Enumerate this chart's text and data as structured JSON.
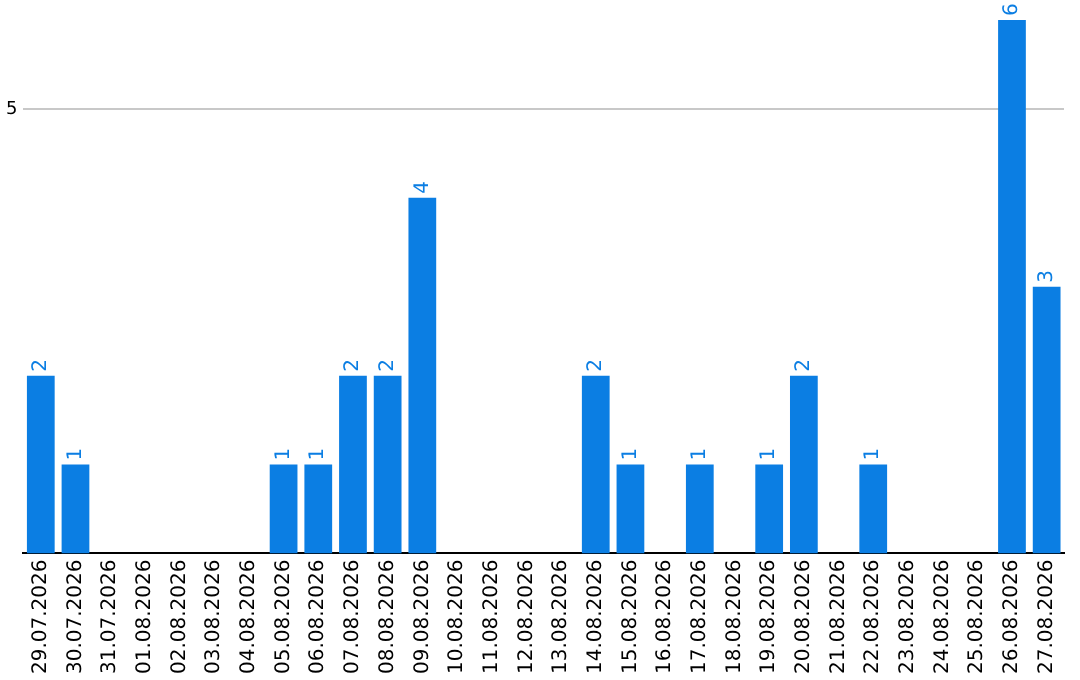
{
  "chart_data": {
    "type": "bar",
    "categories": [
      "29.07.2026",
      "30.07.2026",
      "31.07.2026",
      "01.08.2026",
      "02.08.2026",
      "03.08.2026",
      "04.08.2026",
      "05.08.2026",
      "06.08.2026",
      "07.08.2026",
      "08.08.2026",
      "09.08.2026",
      "10.08.2026",
      "11.08.2026",
      "12.08.2026",
      "13.08.2026",
      "14.08.2026",
      "15.08.2026",
      "16.08.2026",
      "17.08.2026",
      "18.08.2026",
      "19.08.2026",
      "20.08.2026",
      "21.08.2026",
      "22.08.2026",
      "23.08.2026",
      "24.08.2026",
      "25.08.2026",
      "26.08.2026",
      "27.08.2026"
    ],
    "values": [
      2,
      1,
      0,
      0,
      0,
      0,
      0,
      1,
      1,
      2,
      2,
      4,
      0,
      0,
      0,
      0,
      2,
      1,
      0,
      1,
      0,
      1,
      2,
      0,
      1,
      0,
      0,
      0,
      6,
      3
    ],
    "value_labels": [
      "2",
      "1",
      null,
      null,
      null,
      null,
      null,
      "1",
      "1",
      "2",
      "2",
      "4",
      null,
      null,
      null,
      null,
      "2",
      "1",
      null,
      "1",
      null,
      "1",
      "2",
      null,
      "1",
      null,
      null,
      null,
      "6",
      "3"
    ],
    "color": "#0b7ee3",
    "ylim": [
      0,
      6
    ],
    "yticks": [
      5
    ],
    "grid": "y",
    "legend": false
  }
}
